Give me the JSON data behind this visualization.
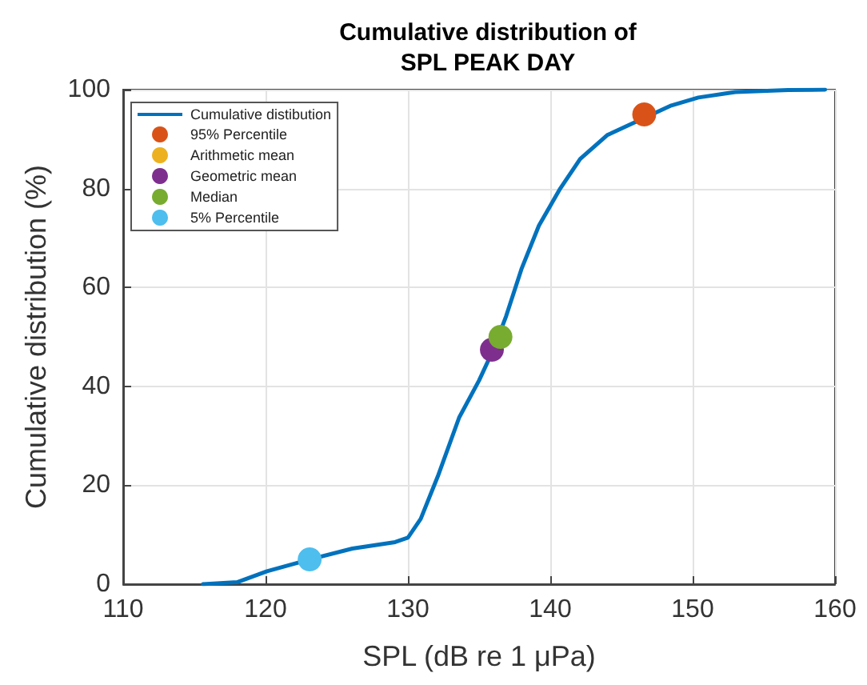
{
  "chart_data": {
    "type": "line",
    "title": "Cumulative distribution of\nSPL PEAK DAY",
    "xlabel": "SPL (dB re 1 μPa)",
    "ylabel": "Cumulative distribution (%)",
    "xlim": [
      110,
      160
    ],
    "xticks": [
      110,
      120,
      130,
      140,
      150,
      160
    ],
    "ylim": [
      0,
      100
    ],
    "yticks": [
      0,
      20,
      40,
      60,
      80,
      100
    ],
    "grid": true,
    "legend": "top left",
    "series": [
      {
        "name": "Cumulative distibution",
        "color": "#0072bd",
        "marker": "none",
        "line_style": "solid",
        "x": [
          115.6,
          118.0,
          120.1,
          123.1,
          126.1,
          129.1,
          130.0,
          130.9,
          132.1,
          133.6,
          135.0,
          136.0,
          136.9,
          138.0,
          139.2,
          140.7,
          142.1,
          144.0,
          148.5,
          150.4,
          153.0,
          156.7,
          159.3
        ],
        "values": [
          0,
          0.4,
          2.6,
          5.0,
          7.2,
          8.5,
          9.4,
          13.2,
          21.8,
          33.7,
          41.2,
          47.4,
          54.2,
          63.9,
          72.5,
          80.0,
          86.0,
          90.8,
          96.8,
          98.4,
          99.5,
          99.9,
          100
        ]
      },
      {
        "name": "95% Percentile",
        "type": "scatter",
        "marker": "circle",
        "color": "#d95319",
        "x": [
          146.6
        ],
        "values": [
          95
        ]
      },
      {
        "name": "Arithmetic mean",
        "type": "scatter",
        "marker": "circle",
        "color": "#edb120",
        "x": [
          null
        ],
        "values": [
          null
        ]
      },
      {
        "name": "Geometric mean",
        "type": "scatter",
        "marker": "circle",
        "color": "#7e2f8e",
        "x": [
          135.9
        ],
        "values": [
          47.4
        ]
      },
      {
        "name": "Median",
        "type": "scatter",
        "marker": "circle",
        "color": "#77ac30",
        "x": [
          136.5
        ],
        "values": [
          50
        ]
      },
      {
        "name": "5% Percentile",
        "type": "scatter",
        "marker": "circle",
        "color": "#4dbeee",
        "x": [
          123.1
        ],
        "values": [
          5
        ]
      }
    ]
  }
}
